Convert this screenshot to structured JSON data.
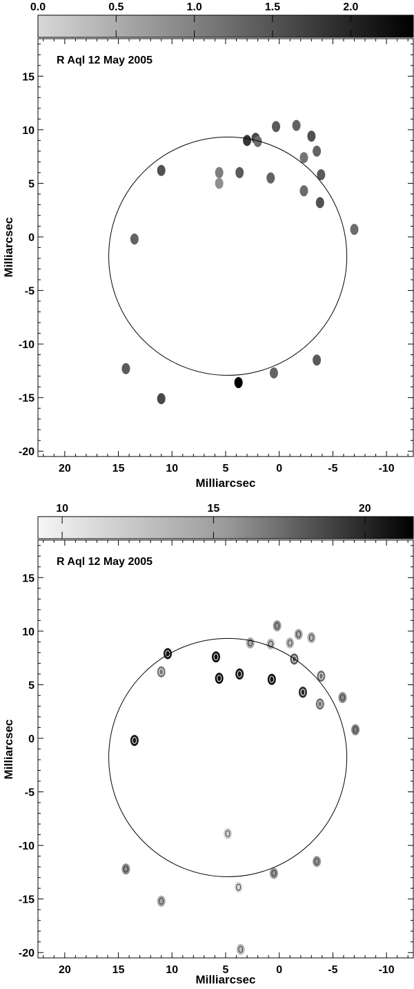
{
  "chart_data": [
    {
      "type": "scatter",
      "title": "R Aql 12 May 2005",
      "xlabel": "Milliarcsec",
      "ylabel": "Milliarcsec",
      "xlim": [
        22.5,
        -12.5
      ],
      "ylim": [
        -20.5,
        18.5
      ],
      "x_ticks": [
        "20",
        "15",
        "10",
        "5",
        "0",
        "-5",
        "-10"
      ],
      "y_ticks": [
        "15",
        "10",
        "5",
        "0",
        "-5",
        "-10",
        "-15",
        "-20"
      ],
      "colorbar": {
        "ticks": [
          "0.0",
          "0.5",
          "1.0",
          "1.5",
          "2.0"
        ],
        "range": [
          0.0,
          2.4
        ]
      },
      "ring": {
        "center": [
          4.8,
          -1.8
        ],
        "radius": 11.1
      },
      "grid": false,
      "series": [
        {
          "values": [
            {
              "x": 11.0,
              "y": 6.2,
              "v": 1.5
            },
            {
              "x": 13.5,
              "y": -0.2,
              "v": 1.3
            },
            {
              "x": 5.6,
              "y": 6.0,
              "v": 1.0
            },
            {
              "x": 5.6,
              "y": 5.0,
              "v": 0.8
            },
            {
              "x": 3.7,
              "y": 6.0,
              "v": 1.4
            },
            {
              "x": 3.0,
              "y": 9.0,
              "v": 1.8
            },
            {
              "x": 2.2,
              "y": 9.2,
              "v": 1.6
            },
            {
              "x": 0.3,
              "y": 10.3,
              "v": 1.4
            },
            {
              "x": -3.0,
              "y": 9.4,
              "v": 1.5
            },
            {
              "x": -3.5,
              "y": 8.0,
              "v": 1.3
            },
            {
              "x": -2.3,
              "y": 7.4,
              "v": 1.1
            },
            {
              "x": 0.8,
              "y": 5.5,
              "v": 1.3
            },
            {
              "x": -2.3,
              "y": 4.3,
              "v": 1.2
            },
            {
              "x": -3.8,
              "y": 3.2,
              "v": 1.5
            },
            {
              "x": -3.9,
              "y": 5.8,
              "v": 1.4
            },
            {
              "x": -7.0,
              "y": 0.7,
              "v": 1.2
            },
            {
              "x": 14.3,
              "y": -12.3,
              "v": 1.4
            },
            {
              "x": 11.0,
              "y": -15.1,
              "v": 1.6
            },
            {
              "x": 3.8,
              "y": -13.6,
              "v": 2.4
            },
            {
              "x": 0.5,
              "y": -12.7,
              "v": 1.3
            },
            {
              "x": -3.5,
              "y": -11.5,
              "v": 1.4
            },
            {
              "x": 2.0,
              "y": 8.9,
              "v": 1.2
            },
            {
              "x": -1.6,
              "y": 10.4,
              "v": 1.3
            }
          ]
        }
      ]
    },
    {
      "type": "scatter",
      "title": "R Aql 12 May 2005",
      "xlabel": "Milliarcsec",
      "ylabel": "Milliarcsec",
      "xlim": [
        22.5,
        -12.5
      ],
      "ylim": [
        -20.5,
        18.5
      ],
      "x_ticks": [
        "20",
        "15",
        "10",
        "5",
        "0",
        "-5",
        "-10"
      ],
      "y_ticks": [
        "15",
        "10",
        "5",
        "0",
        "-5",
        "-10",
        "-15",
        "-20"
      ],
      "colorbar": {
        "ticks": [
          "10",
          "15",
          "20"
        ],
        "range": [
          9.2,
          21.6
        ]
      },
      "ring": {
        "center": [
          4.8,
          -1.8
        ],
        "radius": 11.1
      },
      "grid": false,
      "series": [
        {
          "values": [
            {
              "x": 11.0,
              "y": 6.2,
              "v": 15.5
            },
            {
              "x": 13.5,
              "y": -0.2,
              "v": 20.5
            },
            {
              "x": 5.6,
              "y": 5.6,
              "v": 21.0
            },
            {
              "x": 3.7,
              "y": 6.0,
              "v": 20.5
            },
            {
              "x": 0.7,
              "y": 5.5,
              "v": 20.8
            },
            {
              "x": 5.9,
              "y": 7.6,
              "v": 20.8
            },
            {
              "x": 2.7,
              "y": 8.9,
              "v": 13.0
            },
            {
              "x": 0.2,
              "y": 10.5,
              "v": 14.0
            },
            {
              "x": 0.8,
              "y": 8.8,
              "v": 12.0
            },
            {
              "x": -1.0,
              "y": 8.9,
              "v": 12.0
            },
            {
              "x": -1.4,
              "y": 7.4,
              "v": 17.0
            },
            {
              "x": -3.0,
              "y": 9.4,
              "v": 12.5
            },
            {
              "x": -1.8,
              "y": 9.7,
              "v": 13.0
            },
            {
              "x": -2.2,
              "y": 4.3,
              "v": 19.5
            },
            {
              "x": -3.8,
              "y": 3.2,
              "v": 16.0
            },
            {
              "x": -3.9,
              "y": 5.8,
              "v": 16.0
            },
            {
              "x": -5.9,
              "y": 3.8,
              "v": 14.5
            },
            {
              "x": -7.1,
              "y": 0.8,
              "v": 15.0
            },
            {
              "x": 10.4,
              "y": 7.9,
              "v": 20.5
            },
            {
              "x": 14.3,
              "y": -12.2,
              "v": 14.5
            },
            {
              "x": 11.0,
              "y": -15.2,
              "v": 13.0
            },
            {
              "x": 3.8,
              "y": -13.9,
              "v": 10.5
            },
            {
              "x": 4.8,
              "y": -8.9,
              "v": 11.0
            },
            {
              "x": 0.5,
              "y": -12.6,
              "v": 14.0
            },
            {
              "x": -3.5,
              "y": -11.5,
              "v": 14.0
            },
            {
              "x": 3.6,
              "y": -19.7,
              "v": 12.0
            }
          ]
        }
      ]
    }
  ]
}
